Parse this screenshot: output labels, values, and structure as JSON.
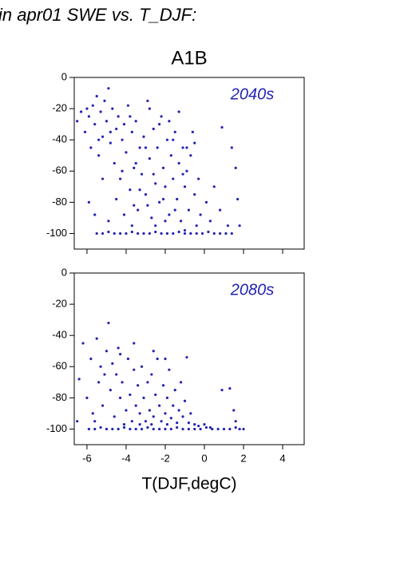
{
  "header": {
    "title": "in apr01 SWE vs. T_DJF:",
    "subtitle": "A1B"
  },
  "chart_data": [
    {
      "type": "scatter",
      "annotation": "2040s",
      "color": "#2323b4",
      "xlim": [
        -6.65,
        5.1
      ],
      "ylim": [
        -110,
        0
      ],
      "xticks": [
        -6,
        -4,
        -2,
        0,
        2,
        4
      ],
      "yticks": [
        0,
        -20,
        -40,
        -60,
        -80,
        -100
      ],
      "x": [
        -6.5,
        -6.3,
        -6.1,
        -5.9,
        -5.8,
        -5.7,
        -5.6,
        -5.5,
        -5.4,
        -5.3,
        -5.2,
        -5.1,
        -5.0,
        -4.9,
        -4.8,
        -4.7,
        -4.6,
        -4.5,
        -4.4,
        -4.3,
        -4.2,
        -4.1,
        -4.0,
        -3.9,
        -3.8,
        -3.7,
        -3.6,
        -3.5,
        -3.4,
        -3.3,
        -3.2,
        -3.1,
        -3.0,
        -2.9,
        -2.8,
        -2.7,
        -2.6,
        -2.5,
        -2.4,
        -2.3,
        -2.2,
        -2.1,
        -2.0,
        -1.9,
        -1.8,
        -1.7,
        -1.6,
        -1.5,
        -1.4,
        -1.3,
        -1.2,
        -1.1,
        -1.0,
        -0.9,
        -0.8,
        -0.7,
        -0.5,
        -0.4,
        -0.3,
        -0.2,
        0.1,
        0.3,
        0.5,
        0.9,
        0.8,
        1.2,
        1.4,
        1.6,
        1.7,
        1.8,
        -5.9,
        -5.6,
        -5.2,
        -4.9,
        -4.5,
        -4.1,
        -3.7,
        -3.3,
        -2.9,
        -2.5,
        -2.0,
        -1.5,
        -1.0,
        -0.5,
        -0.6,
        -3.8,
        -2.3,
        -1.8,
        -1.3,
        -2.8,
        -3.5,
        -4.8,
        -5.4,
        -6.0,
        -4.2,
        -3.0,
        -1.6,
        -0.9,
        -2.6,
        -1.1,
        -2.1,
        -3.6,
        -5.5,
        -5.2,
        -4.9,
        -4.6,
        -4.3,
        -4.0,
        -3.7,
        -3.4,
        -3.1,
        -2.8,
        -2.5,
        -2.2,
        -1.9,
        -1.6,
        -1.3,
        -1.0,
        -0.7,
        -0.4,
        -0.1,
        0.2,
        0.5,
        0.8,
        1.1,
        1.4
      ],
      "values": [
        -28,
        -22,
        -35,
        -25,
        -45,
        -18,
        -30,
        -12,
        -50,
        -22,
        -38,
        -15,
        -28,
        -7,
        -42,
        -20,
        -55,
        -33,
        -25,
        -65,
        -40,
        -30,
        -48,
        -18,
        -72,
        -35,
        -58,
        -28,
        -85,
        -45,
        -62,
        -38,
        -75,
        -15,
        -52,
        -90,
        -33,
        -68,
        -45,
        -80,
        -25,
        -58,
        -70,
        -40,
        -88,
        -50,
        -65,
        -35,
        -78,
        -55,
        -92,
        -45,
        -70,
        -60,
        -85,
        -50,
        -75,
        -95,
        -65,
        -88,
        -80,
        -92,
        -70,
        -32,
        -85,
        -95,
        -45,
        -58,
        -78,
        -95,
        -80,
        -88,
        -65,
        -92,
        -78,
        -88,
        -95,
        -72,
        -82,
        -95,
        -92,
        -85,
        -98,
        -42,
        -35,
        -25,
        -30,
        -28,
        -22,
        -20,
        -55,
        -35,
        -40,
        -20,
        -60,
        -45,
        -40,
        -45,
        -62,
        -62,
        -78,
        -82,
        -100,
        -100,
        -99,
        -100,
        -100,
        -100,
        -99,
        -100,
        -100,
        -100,
        -99,
        -100,
        -100,
        -100,
        -99,
        -100,
        -100,
        -100,
        -100,
        -99,
        -100,
        -100,
        -100,
        -100
      ]
    },
    {
      "type": "scatter",
      "annotation": "2080s",
      "color": "#2323b4",
      "xlim": [
        -6.65,
        5.1
      ],
      "ylim": [
        -110,
        0
      ],
      "xticks": [
        -6,
        -4,
        -2,
        0,
        2,
        4
      ],
      "yticks": [
        0,
        -20,
        -40,
        -60,
        -80,
        -100
      ],
      "x_label": "T(DJF,degC)",
      "x": [
        -6.4,
        -6.2,
        -6.0,
        -5.8,
        -5.7,
        -5.5,
        -5.4,
        -5.3,
        -5.2,
        -5.0,
        -4.9,
        -4.8,
        -4.7,
        -4.6,
        -4.5,
        -4.4,
        -4.3,
        -4.2,
        -4.0,
        -3.9,
        -3.8,
        -3.7,
        -3.6,
        -3.5,
        -3.4,
        -3.3,
        -3.2,
        -3.1,
        -3.0,
        -2.9,
        -2.8,
        -2.7,
        -2.6,
        -2.5,
        -2.4,
        -2.3,
        -2.2,
        -2.1,
        -2.0,
        -1.9,
        -1.8,
        -1.7,
        -1.6,
        -1.5,
        -1.4,
        -1.3,
        -1.2,
        -1.1,
        -1.0,
        -0.9,
        -0.8,
        -0.7,
        -0.5,
        -0.3,
        0.0,
        0.3,
        0.9,
        1.3,
        1.5,
        1.6,
        -5.6,
        -4.1,
        -3.3,
        -2.7,
        -1.9,
        -6.5,
        -5.1,
        -4.3,
        -3.6,
        -2.0,
        -2.6,
        -5.9,
        -5.6,
        -5.3,
        -5.0,
        -4.7,
        -4.4,
        -4.1,
        -3.8,
        -3.5,
        -3.2,
        -2.9,
        -2.6,
        -2.3,
        -2.0,
        -1.7,
        -1.4,
        -1.1,
        -0.8,
        -0.5,
        -0.2,
        0.1,
        0.4,
        0.7,
        1.0,
        1.3,
        1.6,
        1.8,
        2.0
      ],
      "values": [
        -68,
        -45,
        -80,
        -55,
        -90,
        -42,
        -70,
        -60,
        -85,
        -50,
        -32,
        -75,
        -58,
        -92,
        -65,
        -48,
        -80,
        -70,
        -88,
        -55,
        -78,
        -95,
        -62,
        -85,
        -72,
        -90,
        -60,
        -80,
        -95,
        -70,
        -88,
        -65,
        -92,
        -78,
        -55,
        -85,
        -95,
        -72,
        -90,
        -80,
        -62,
        -93,
        -85,
        -75,
        -96,
        -88,
        -70,
        -92,
        -82,
        -54,
        -96,
        -90,
        -97,
        -98,
        -97,
        -99,
        -75,
        -74,
        -88,
        -95,
        -95,
        -97,
        -97,
        -97,
        -97,
        -95,
        -65,
        -52,
        -45,
        -55,
        -50,
        -100,
        -100,
        -99,
        -100,
        -100,
        -100,
        -99,
        -100,
        -100,
        -100,
        -99,
        -100,
        -100,
        -100,
        -100,
        -99,
        -100,
        -100,
        -100,
        -100,
        -99,
        -100,
        -100,
        -100,
        -100,
        -99,
        -100,
        -100
      ]
    }
  ]
}
